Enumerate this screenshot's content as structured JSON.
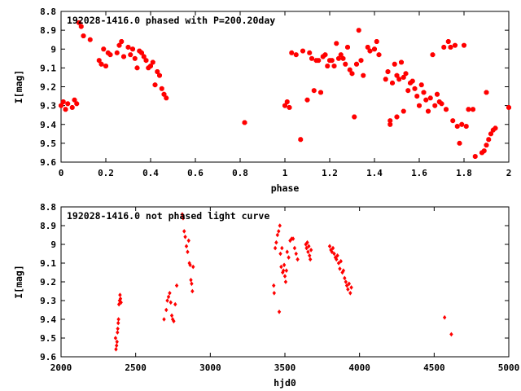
{
  "chart_data": [
    {
      "type": "scatter",
      "title": "192028-1416.0 phased with P=200.20day",
      "xlabel": "phase",
      "ylabel": "I[mag]",
      "xlim": [
        0,
        2
      ],
      "ylim": [
        9.6,
        8.8
      ],
      "y_inverted": true,
      "xticks": [
        "0",
        "0.2",
        "0.4",
        "0.6",
        "0.8",
        "1",
        "1.2",
        "1.4",
        "1.6",
        "1.8",
        "2"
      ],
      "yticks": [
        "8.8",
        "8.9",
        "9",
        "9.1",
        "9.2",
        "9.3",
        "9.4",
        "9.5",
        "9.6"
      ],
      "grid": false,
      "legend": "none",
      "marker_color": "#ff0000",
      "series": [
        {
          "points": [
            [
              0.0,
              9.3
            ],
            [
              0.01,
              9.28
            ],
            [
              0.02,
              9.32
            ],
            [
              0.03,
              9.29
            ],
            [
              0.05,
              9.31
            ],
            [
              0.06,
              9.27
            ],
            [
              0.07,
              9.29
            ],
            [
              0.08,
              8.86
            ],
            [
              0.09,
              8.88
            ],
            [
              0.1,
              8.93
            ],
            [
              0.13,
              8.95
            ],
            [
              0.17,
              9.06
            ],
            [
              0.18,
              9.08
            ],
            [
              0.19,
              9.0
            ],
            [
              0.2,
              9.09
            ],
            [
              0.21,
              9.02
            ],
            [
              0.22,
              9.03
            ],
            [
              0.25,
              9.02
            ],
            [
              0.26,
              8.98
            ],
            [
              0.27,
              8.96
            ],
            [
              0.28,
              9.04
            ],
            [
              0.3,
              8.99
            ],
            [
              0.31,
              9.03
            ],
            [
              0.32,
              9.0
            ],
            [
              0.33,
              9.05
            ],
            [
              0.34,
              9.1
            ],
            [
              0.35,
              9.01
            ],
            [
              0.36,
              9.02
            ],
            [
              0.37,
              9.04
            ],
            [
              0.38,
              9.06
            ],
            [
              0.39,
              9.1
            ],
            [
              0.4,
              9.09
            ],
            [
              0.41,
              9.07
            ],
            [
              0.42,
              9.19
            ],
            [
              0.43,
              9.12
            ],
            [
              0.44,
              9.14
            ],
            [
              0.45,
              9.21
            ],
            [
              0.46,
              9.24
            ],
            [
              0.47,
              9.26
            ],
            [
              0.82,
              9.39
            ],
            [
              1.0,
              9.3
            ],
            [
              1.01,
              9.28
            ],
            [
              1.02,
              9.31
            ],
            [
              1.03,
              9.02
            ],
            [
              1.05,
              9.03
            ],
            [
              1.07,
              9.48
            ],
            [
              1.08,
              9.01
            ],
            [
              1.1,
              9.27
            ],
            [
              1.11,
              9.02
            ],
            [
              1.12,
              9.05
            ],
            [
              1.13,
              9.22
            ],
            [
              1.14,
              9.06
            ],
            [
              1.15,
              9.06
            ],
            [
              1.16,
              9.23
            ],
            [
              1.17,
              9.04
            ],
            [
              1.18,
              9.03
            ],
            [
              1.19,
              9.09
            ],
            [
              1.2,
              9.06
            ],
            [
              1.21,
              9.06
            ],
            [
              1.22,
              9.09
            ],
            [
              1.23,
              8.97
            ],
            [
              1.24,
              9.05
            ],
            [
              1.25,
              9.03
            ],
            [
              1.26,
              9.05
            ],
            [
              1.27,
              9.08
            ],
            [
              1.28,
              8.99
            ],
            [
              1.29,
              9.11
            ],
            [
              1.3,
              9.13
            ],
            [
              1.31,
              9.36
            ],
            [
              1.32,
              9.08
            ],
            [
              1.33,
              8.9
            ],
            [
              1.34,
              9.06
            ],
            [
              1.35,
              9.14
            ],
            [
              1.37,
              8.99
            ],
            [
              1.38,
              9.01
            ],
            [
              1.4,
              9.0
            ],
            [
              1.41,
              8.96
            ],
            [
              1.42,
              9.03
            ],
            [
              1.45,
              9.16
            ],
            [
              1.46,
              9.12
            ],
            [
              1.47,
              9.4
            ],
            [
              1.48,
              9.18
            ],
            [
              1.49,
              9.08
            ],
            [
              1.5,
              9.14
            ],
            [
              1.51,
              9.16
            ],
            [
              1.52,
              9.07
            ],
            [
              1.53,
              9.15
            ],
            [
              1.54,
              9.13
            ],
            [
              1.55,
              9.22
            ],
            [
              1.56,
              9.18
            ],
            [
              1.57,
              9.17
            ],
            [
              1.58,
              9.21
            ],
            [
              1.59,
              9.25
            ],
            [
              1.6,
              9.3
            ],
            [
              1.61,
              9.19
            ],
            [
              1.62,
              9.23
            ],
            [
              1.63,
              9.27
            ],
            [
              1.64,
              9.33
            ],
            [
              1.65,
              9.26
            ],
            [
              1.66,
              9.03
            ],
            [
              1.67,
              9.3
            ],
            [
              1.68,
              9.24
            ],
            [
              1.69,
              9.28
            ],
            [
              1.7,
              9.29
            ],
            [
              1.71,
              8.99
            ],
            [
              1.72,
              9.32
            ],
            [
              1.73,
              8.96
            ],
            [
              1.74,
              8.99
            ],
            [
              1.75,
              9.38
            ],
            [
              1.76,
              8.98
            ],
            [
              1.77,
              9.41
            ],
            [
              1.78,
              9.5
            ],
            [
              1.79,
              9.4
            ],
            [
              1.8,
              8.98
            ],
            [
              1.81,
              9.41
            ],
            [
              1.82,
              9.32
            ],
            [
              1.84,
              9.32
            ],
            [
              1.85,
              9.57
            ],
            [
              1.88,
              9.55
            ],
            [
              1.89,
              9.54
            ],
            [
              1.9,
              9.51
            ],
            [
              1.91,
              9.48
            ],
            [
              1.92,
              9.45
            ],
            [
              1.93,
              9.43
            ],
            [
              1.94,
              9.42
            ],
            [
              1.9,
              9.23
            ],
            [
              2.0,
              9.31
            ],
            [
              1.47,
              9.38
            ],
            [
              1.5,
              9.36
            ],
            [
              1.53,
              9.33
            ]
          ]
        }
      ]
    },
    {
      "type": "scatter",
      "title": "192028-1416.0 not phased light curve",
      "xlabel": "hjd0",
      "ylabel": "I[mag]",
      "xlim": [
        2000,
        5000
      ],
      "ylim": [
        9.6,
        8.8
      ],
      "y_inverted": true,
      "xticks": [
        "2000",
        "2500",
        "3000",
        "3500",
        "4000",
        "4500",
        "5000"
      ],
      "yticks": [
        "8.8",
        "8.9",
        "9",
        "9.1",
        "9.2",
        "9.3",
        "9.4",
        "9.5",
        "9.6"
      ],
      "grid": false,
      "legend": "none",
      "marker_color": "#ff0000",
      "series": [
        {
          "points": [
            [
              2365,
              9.5
            ],
            [
              2368,
              9.56
            ],
            [
              2372,
              9.54
            ],
            [
              2375,
              9.52
            ],
            [
              2378,
              9.47
            ],
            [
              2380,
              9.45
            ],
            [
              2383,
              9.42
            ],
            [
              2385,
              9.4
            ],
            [
              2388,
              9.32
            ],
            [
              2392,
              9.3
            ],
            [
              2395,
              9.27
            ],
            [
              2398,
              9.29
            ],
            [
              2402,
              9.31
            ],
            [
              2690,
              9.4
            ],
            [
              2705,
              9.35
            ],
            [
              2712,
              9.3
            ],
            [
              2720,
              9.28
            ],
            [
              2728,
              9.26
            ],
            [
              2735,
              9.31
            ],
            [
              2742,
              9.38
            ],
            [
              2748,
              9.4
            ],
            [
              2755,
              9.41
            ],
            [
              2765,
              9.32
            ],
            [
              2775,
              9.22
            ],
            [
              2812,
              8.84
            ],
            [
              2818,
              8.86
            ],
            [
              2825,
              8.93
            ],
            [
              2832,
              8.96
            ],
            [
              2840,
              9.01
            ],
            [
              2848,
              9.04
            ],
            [
              2855,
              8.98
            ],
            [
              2860,
              9.1
            ],
            [
              2865,
              9.11
            ],
            [
              2870,
              9.19
            ],
            [
              2875,
              9.21
            ],
            [
              2880,
              9.25
            ],
            [
              2885,
              9.12
            ],
            [
              3425,
              9.22
            ],
            [
              3428,
              9.26
            ],
            [
              3435,
              9.02
            ],
            [
              3442,
              8.99
            ],
            [
              3450,
              8.95
            ],
            [
              3458,
              8.93
            ],
            [
              3462,
              9.36
            ],
            [
              3466,
              8.9
            ],
            [
              3470,
              9.05
            ],
            [
              3475,
              9.12
            ],
            [
              3480,
              9.02
            ],
            [
              3485,
              9.15
            ],
            [
              3490,
              9.14
            ],
            [
              3495,
              9.11
            ],
            [
              3500,
              9.17
            ],
            [
              3505,
              9.2
            ],
            [
              3510,
              9.14
            ],
            [
              3515,
              9.04
            ],
            [
              3525,
              9.07
            ],
            [
              3535,
              8.98
            ],
            [
              3545,
              8.97
            ],
            [
              3555,
              8.97
            ],
            [
              3565,
              9.02
            ],
            [
              3575,
              9.05
            ],
            [
              3585,
              9.08
            ],
            [
              3640,
              9.0
            ],
            [
              3645,
              9.02
            ],
            [
              3650,
              8.99
            ],
            [
              3655,
              9.04
            ],
            [
              3660,
              9.01
            ],
            [
              3665,
              9.06
            ],
            [
              3670,
              9.08
            ],
            [
              3675,
              9.03
            ],
            [
              3800,
              9.01
            ],
            [
              3808,
              9.03
            ],
            [
              3815,
              9.04
            ],
            [
              3822,
              9.02
            ],
            [
              3830,
              9.05
            ],
            [
              3838,
              9.07
            ],
            [
              3845,
              9.08
            ],
            [
              3852,
              9.06
            ],
            [
              3860,
              9.1
            ],
            [
              3868,
              9.13
            ],
            [
              3875,
              9.09
            ],
            [
              3885,
              9.15
            ],
            [
              3892,
              9.14
            ],
            [
              3900,
              9.18
            ],
            [
              3908,
              9.2
            ],
            [
              3915,
              9.22
            ],
            [
              3922,
              9.24
            ],
            [
              3930,
              9.21
            ],
            [
              3938,
              9.26
            ],
            [
              3945,
              9.23
            ],
            [
              4570,
              9.39
            ],
            [
              4615,
              9.48
            ]
          ]
        }
      ]
    }
  ]
}
